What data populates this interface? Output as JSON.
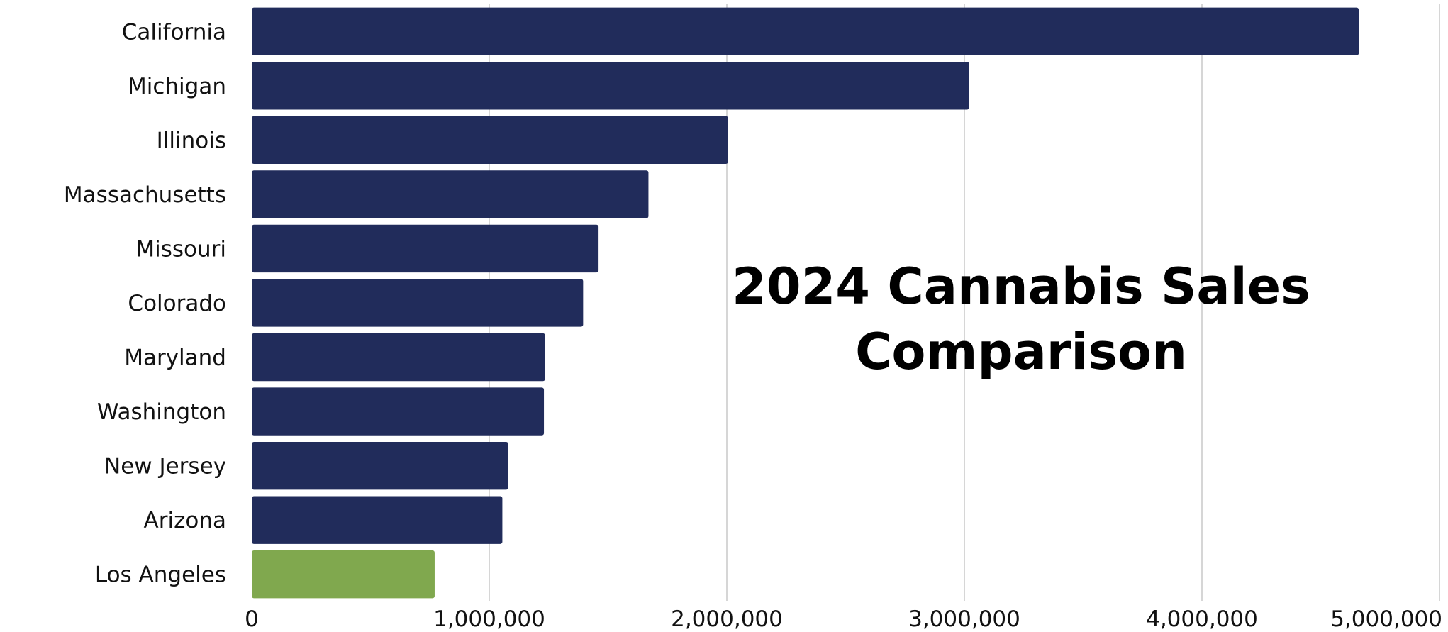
{
  "chart_data": {
    "type": "bar",
    "orientation": "horizontal",
    "title_lines": [
      "2024 Cannabis Sales",
      "Comparison"
    ],
    "categories": [
      "California",
      "Michigan",
      "Illinois",
      "Massachusetts",
      "Missouri",
      "Colorado",
      "Maryland",
      "Washington",
      "New Jersey",
      "Arizona",
      "Los Angeles"
    ],
    "values": [
      4660000,
      3020000,
      2005000,
      1670000,
      1460000,
      1395000,
      1235000,
      1230000,
      1080000,
      1055000,
      770000
    ],
    "bar_colors": [
      "#212c5b",
      "#212c5b",
      "#212c5b",
      "#212c5b",
      "#212c5b",
      "#212c5b",
      "#212c5b",
      "#212c5b",
      "#212c5b",
      "#212c5b",
      "#80a84e"
    ],
    "x_ticks": [
      0,
      1000000,
      2000000,
      3000000,
      4000000,
      5000000
    ],
    "x_tick_labels": [
      "0",
      "1,000,000",
      "2,000,000",
      "3,000,000",
      "4,000,000",
      "5,000,000"
    ],
    "xlim": [
      0,
      5000000
    ],
    "grid": "vertical",
    "gridline_color": "#d6d6d6",
    "xlabel": "",
    "ylabel": ""
  }
}
